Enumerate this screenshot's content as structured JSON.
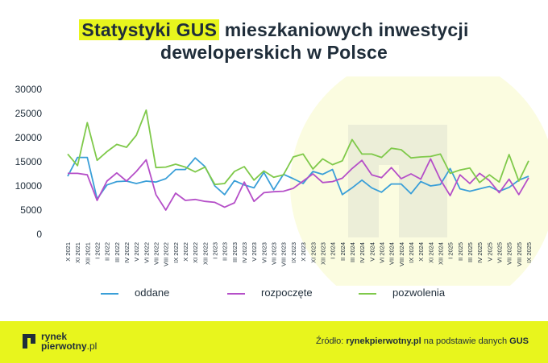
{
  "title": {
    "highlight": "Statystyki GUS",
    "rest_line1": "mieszkaniowych inwestycji",
    "line2": "deweloperskich w Polsce"
  },
  "colors": {
    "accent": "#e8f51d",
    "oddane": "#3a9fd8",
    "rozpoczete": "#b54fc8",
    "pozwolenia": "#7fc94a",
    "text": "#1f2d3a"
  },
  "chart_data": {
    "type": "line",
    "ylim": [
      0,
      30000
    ],
    "yticks": [
      0,
      5000,
      10000,
      15000,
      20000,
      25000,
      30000
    ],
    "grid": false,
    "legend": "bottom",
    "categories": [
      "X 2021",
      "XI 2021",
      "XII 2021",
      "I 2022",
      "II 2022",
      "III 2022",
      "IV 2022",
      "V 2022",
      "VI 2022",
      "VII 2022",
      "VIII 2022",
      "IX 2022",
      "X 2022",
      "XI 2022",
      "XII 2022",
      "I 2023",
      "II 2023",
      "III 2023",
      "IV 2023",
      "V 2023",
      "VI 2023",
      "VII 2023",
      "VIII 2023",
      "IX 2023",
      "X 2023",
      "XI 2023",
      "XII 2023",
      "I 2024",
      "II 2024",
      "III 2024",
      "IV 2024",
      "V 2024",
      "VI 2024",
      "VII 2024",
      "VIII 2024",
      "IX 2024",
      "X 2024",
      "XI 2024",
      "XII 2024",
      "I 2025",
      "II 2025",
      "III 2025",
      "IV 2025",
      "V 2025",
      "VI 2025",
      "VII 2025",
      "VIII 2025",
      "IX 2025"
    ],
    "tick_labels": [
      "X 2021",
      "XI 2021",
      "XII 2021",
      "I 2022",
      "II 2022",
      "III 2022",
      "IV 2022",
      "V 2022",
      "VI 2022",
      "VII 2022",
      "VIII 2022",
      "IX 2022",
      "X 2022",
      "XI 2022",
      "XII 2022",
      "I 2023",
      "II 2023",
      "III 2023",
      "IV 2023",
      "V 2023",
      "VI 2023",
      "VII 2023",
      "VIII 2023",
      "IX 2023",
      "X 2023",
      "XI 2023",
      "XII 2023",
      "I 2024",
      "II 2024",
      "III 2024",
      "IV 2024",
      "V 2024",
      "VI 2024",
      "VII 2024",
      "VIII 2024",
      "IX 2024",
      "X 2024",
      "XI 2024",
      "XII 2024",
      "I 2025",
      "II 2025",
      "III 2025",
      "IV 2025",
      "V 2025",
      "VI 2025",
      "VII 2025",
      "VIII 2025",
      "IX 2025"
    ],
    "series": [
      {
        "name": "oddane",
        "values": [
          12000,
          15900,
          15900,
          7300,
          10200,
          10900,
          11000,
          10500,
          11000,
          10800,
          11500,
          13400,
          13400,
          15800,
          14000,
          10000,
          8200,
          11100,
          10200,
          9600,
          12800,
          9200,
          12400,
          11500,
          10500,
          13000,
          12400,
          13400,
          8200,
          9600,
          11200,
          9600,
          8700,
          10400,
          10400,
          8400,
          10900,
          10000,
          10300,
          13600,
          9400,
          8900,
          9400,
          9900,
          8900,
          9700,
          11200,
          12000
        ]
      },
      {
        "name": "rozpoczęte",
        "values": [
          12600,
          12600,
          12300,
          7000,
          11000,
          12700,
          11000,
          13000,
          15400,
          8200,
          5000,
          8500,
          7000,
          7200,
          6800,
          6600,
          5600,
          6500,
          10800,
          6800,
          8600,
          8800,
          8900,
          9500,
          11000,
          12500,
          10700,
          10900,
          11600,
          13600,
          15300,
          12300,
          11700,
          13800,
          11500,
          12500,
          11400,
          15600,
          11300,
          8000,
          12300,
          10500,
          12600,
          11100,
          8600,
          11400,
          8200,
          11700
        ]
      },
      {
        "name": "pozwolenia",
        "values": [
          16600,
          14200,
          23100,
          15300,
          17100,
          18600,
          18000,
          20500,
          25700,
          13800,
          13900,
          14500,
          13900,
          12900,
          13900,
          10300,
          10500,
          13000,
          14000,
          11200,
          13100,
          11800,
          12300,
          16000,
          16600,
          13500,
          15600,
          14400,
          15200,
          19600,
          16600,
          16600,
          15900,
          17800,
          17500,
          15800,
          16000,
          16100,
          16600,
          12600,
          13300,
          13700,
          10700,
          12300,
          10800,
          16500,
          11000,
          15200
        ]
      }
    ]
  },
  "legend": {
    "oddane": "oddane",
    "rozpoczete": "rozpoczęte",
    "pozwolenia": "pozwolenia"
  },
  "footer": {
    "logo_line1": "rynek",
    "logo_line2": "pierwotny",
    "logo_tld": ".pl",
    "source_prefix": "Źródło:",
    "source_site": "rynekpierwotny.pl",
    "source_mid": "na podstawie danych",
    "source_org": "GUS"
  }
}
